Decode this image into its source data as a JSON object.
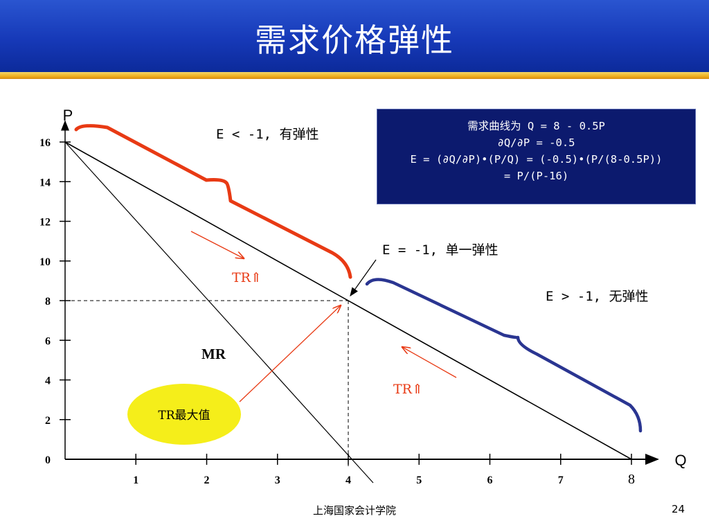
{
  "title": "需求价格弹性",
  "info_box": {
    "lines": [
      "需求曲线为 Q = 8 - 0.5P",
      "∂Q/∂P = -0.5",
      "E = (∂Q/∂P)•(P/Q) = (-0.5)•(P/(8-0.5P))",
      "= P/(P-16)"
    ]
  },
  "chart_data": {
    "type": "line",
    "xlabel": "Q",
    "ylabel": "P",
    "xlim": [
      0,
      8
    ],
    "ylim": [
      0,
      16
    ],
    "x_ticks": [
      "1",
      "2",
      "3",
      "4",
      "5",
      "6",
      "7",
      "8"
    ],
    "y_ticks": [
      "0",
      "2",
      "4",
      "6",
      "8",
      "10",
      "12",
      "14",
      "16"
    ],
    "series": [
      {
        "x": [
          0,
          8
        ],
        "y": [
          16,
          0
        ]
      },
      {
        "name": "MR",
        "x": [
          0,
          4
        ],
        "y": [
          16,
          0
        ]
      }
    ],
    "point": {
      "x": 4,
      "y": 8
    },
    "annotations": {
      "elastic": "E < -1, 有弹性",
      "unit": "E = -1, 单一弹性",
      "inelastic": "E > -1, 无弹性",
      "tr_left": "TR⇑",
      "tr_right": "TR⇑",
      "mr": "MR",
      "tr_max": "TR最大值"
    },
    "colors": {
      "elastic_brace": "#e83a14",
      "inelastic_brace": "#2a3591",
      "tr_arrow": "#e83a14",
      "tr_max_fill": "#f5ee1a"
    }
  },
  "footer": {
    "text": "上海国家会计学院",
    "page": "24"
  }
}
